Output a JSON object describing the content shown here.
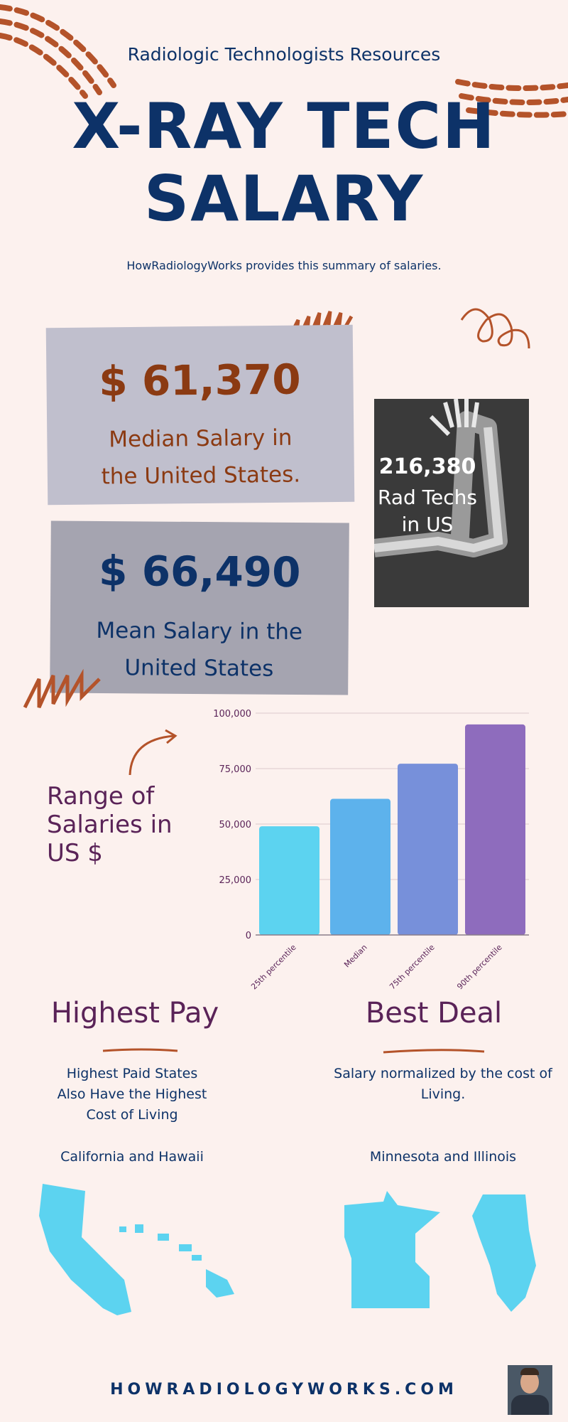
{
  "header": {
    "kicker": "Radiologic Technologists Resources",
    "title_line1": "X-RAY TECH",
    "title_line2": "SALARY",
    "subtitle": "HowRadiologyWorks provides this summary of salaries."
  },
  "median_card": {
    "value": "$ 61,370",
    "label_line1": "Median Salary in",
    "label_line2": "the United States."
  },
  "mean_card": {
    "value": "$ 66,490",
    "label_line1": "Mean Salary in the",
    "label_line2": "United States"
  },
  "count_card": {
    "value": "216,380",
    "label_line1": "Rad Techs",
    "label_line2": "in US"
  },
  "range_label": {
    "line1": "Range of",
    "line2": "Salaries in",
    "line3": "US $"
  },
  "chart_data": {
    "type": "bar",
    "categories": [
      "25th percentile",
      "Median",
      "75th percentile",
      "90th percentile"
    ],
    "values": [
      49000,
      61370,
      77200,
      94900
    ],
    "colors": [
      "#5cd3f0",
      "#5db2ec",
      "#7790da",
      "#8e6cbd"
    ],
    "yticks": [
      "0",
      "25,000",
      "50,000",
      "75,000",
      "100,000"
    ],
    "ylim": [
      0,
      100000
    ],
    "grid": true
  },
  "highest_pay": {
    "title": "Highest Pay",
    "desc_line1": "Highest Paid States",
    "desc_line2": "Also Have the Highest",
    "desc_line3": "Cost of Living",
    "states": "California and Hawaii"
  },
  "best_deal": {
    "title": "Best Deal",
    "desc_line1": "Salary normalized by the cost of",
    "desc_line2": "Living.",
    "states": "Minnesota and Illinois"
  },
  "footer": {
    "site": "HOWRADIOLOGYWORKS.COM"
  },
  "colors": {
    "background": "#fcf1ee",
    "navy": "#0d3268",
    "brown": "#8b3a12",
    "purple": "#5a2358",
    "map": "#5cd3f0"
  }
}
